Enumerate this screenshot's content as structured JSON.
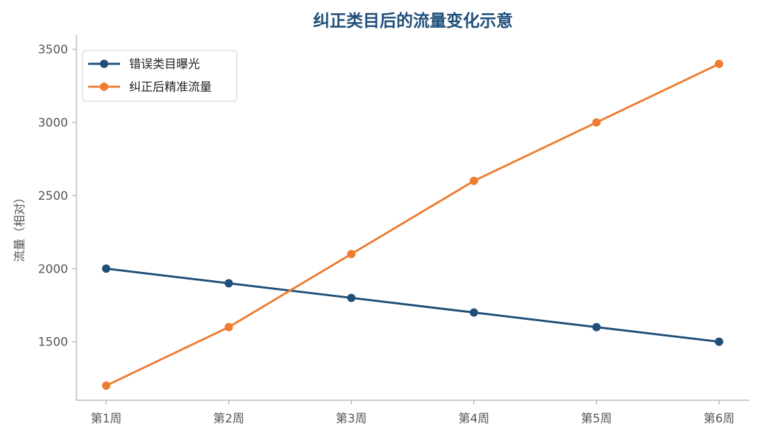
{
  "chart_data": {
    "type": "line",
    "title": "纠正类目后的流量变化示意",
    "xlabel": "",
    "ylabel": "流量（相对）",
    "categories": [
      "第1周",
      "第2周",
      "第3周",
      "第4周",
      "第5周",
      "第6周"
    ],
    "yticks": [
      1500,
      2000,
      2500,
      3000,
      3500
    ],
    "ylim": [
      1100,
      3600
    ],
    "grid": false,
    "legend_position": "top-left",
    "series": [
      {
        "name": "错误类目曝光",
        "color": "#1f4e79",
        "values": [
          2000,
          1900,
          1800,
          1700,
          1600,
          1500
        ]
      },
      {
        "name": "纠正后精准流量",
        "color": "#ed7d31",
        "values": [
          1200,
          1600,
          2100,
          2600,
          3000,
          3400
        ]
      }
    ],
    "axis_color": "#aaaaaa"
  }
}
